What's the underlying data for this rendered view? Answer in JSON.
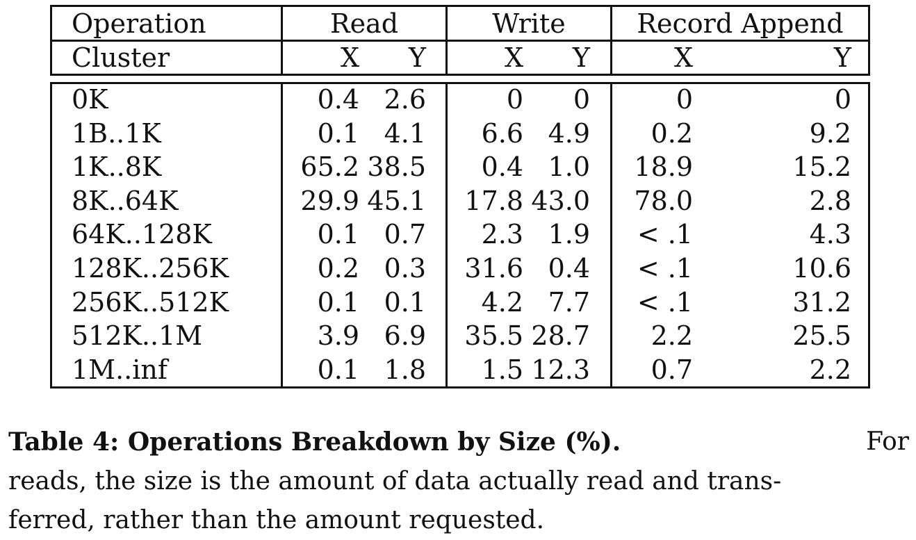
{
  "table": {
    "header": {
      "operation_label": "Operation",
      "cluster_label": "Cluster",
      "groups": [
        "Read",
        "Write",
        "Record Append"
      ],
      "subheaders": [
        "X",
        "Y",
        "X",
        "Y",
        "X",
        "Y"
      ]
    },
    "rows": [
      {
        "size": "0K",
        "values": [
          "0.4",
          "2.6",
          "0",
          "0",
          "0",
          "0"
        ]
      },
      {
        "size": "1B..1K",
        "values": [
          "0.1",
          "4.1",
          "6.6",
          "4.9",
          "0.2",
          "9.2"
        ]
      },
      {
        "size": "1K..8K",
        "values": [
          "65.2",
          "38.5",
          "0.4",
          "1.0",
          "18.9",
          "15.2"
        ]
      },
      {
        "size": "8K..64K",
        "values": [
          "29.9",
          "45.1",
          "17.8",
          "43.0",
          "78.0",
          "2.8"
        ]
      },
      {
        "size": "64K..128K",
        "values": [
          "0.1",
          "0.7",
          "2.3",
          "1.9",
          "< .1",
          "4.3"
        ]
      },
      {
        "size": "128K..256K",
        "values": [
          "0.2",
          "0.3",
          "31.6",
          "0.4",
          "< .1",
          "10.6"
        ]
      },
      {
        "size": "256K..512K",
        "values": [
          "0.1",
          "0.1",
          "4.2",
          "7.7",
          "< .1",
          "31.2"
        ]
      },
      {
        "size": "512K..1M",
        "values": [
          "3.9",
          "6.9",
          "35.5",
          "28.7",
          "2.2",
          "25.5"
        ]
      },
      {
        "size": "1M..inf",
        "values": [
          "0.1",
          "1.8",
          "1.5",
          "12.3",
          "0.7",
          "2.2"
        ]
      }
    ]
  },
  "caption": {
    "label": "Table 4:  Operations Breakdown by Size (%).",
    "line1_rest": "For",
    "line2": "reads, the size is the amount of data actually read and trans-",
    "line3": "ferred, rather than the amount requested."
  }
}
